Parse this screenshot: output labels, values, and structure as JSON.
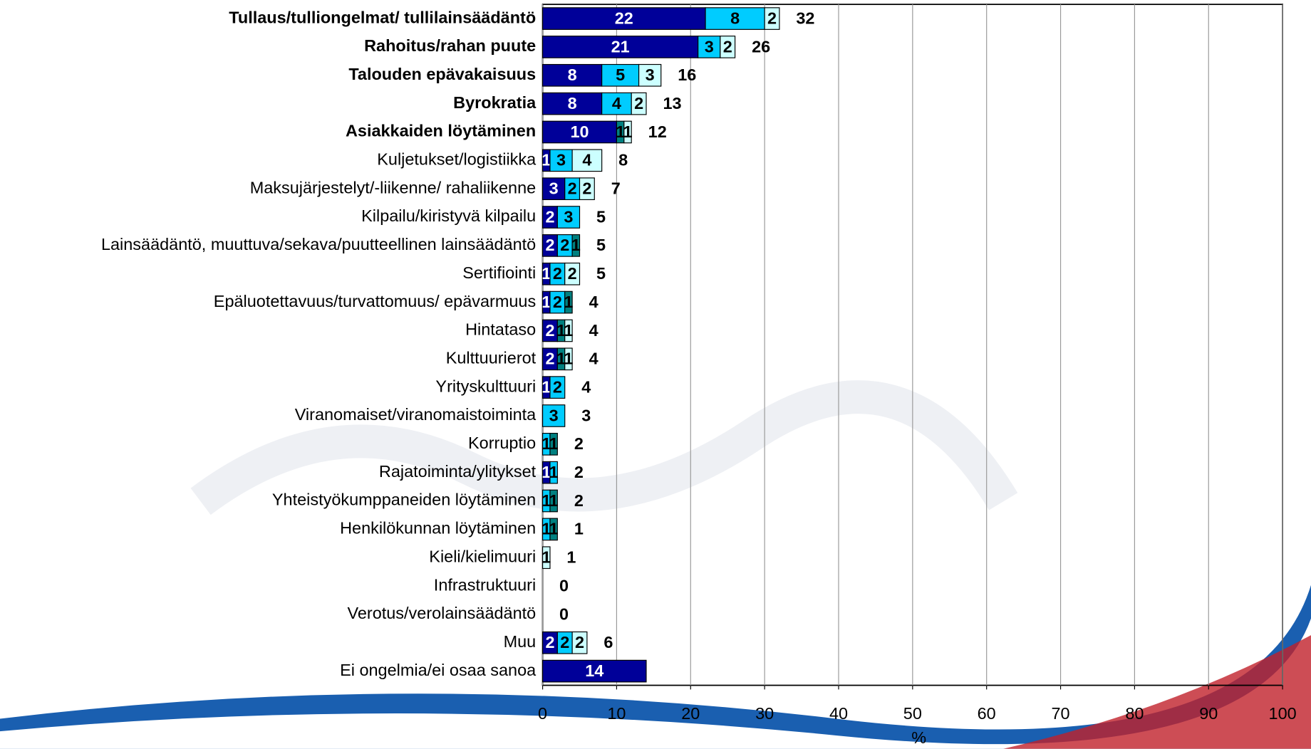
{
  "chart_data": {
    "type": "stacked-bar-horizontal",
    "categories": [
      "Tullaus/tulliongelmat/ tullilainsäädäntö",
      "Rahoitus/rahan puute",
      "Talouden epävakaisuus",
      "Byrokratia",
      "Asiakkaiden löytäminen",
      "Kuljetukset/logistiikka",
      "Maksujärjestelyt/-liikenne/ rahaliikenne",
      "Kilpailu/kiristyvä kilpailu",
      "Lainsäädäntö, muuttuva/sekava/puutteellinen lainsäädäntö",
      "Sertifiointi",
      "Epäluotettavuus/turvattomuus/ epävarmuus",
      "Hintataso",
      "Kulttuurierot",
      "Yrityskulttuuri",
      "Viranomaiset/viranomaistoiminta",
      "Korruptio",
      "Rajatoiminta/ylitykset",
      "Yhteistyökumppaneiden löytäminen",
      "Henkilökunnan löytäminen",
      "Kieli/kielimuuri",
      "Infrastruktuuri",
      "Verotus/verolainsäädäntö",
      "Muu",
      "Ei ongelmia/ei osaa sanoa"
    ],
    "bold": [
      true,
      true,
      true,
      true,
      true,
      false,
      false,
      false,
      false,
      false,
      false,
      false,
      false,
      false,
      false,
      false,
      false,
      false,
      false,
      false,
      false,
      false,
      false,
      false
    ],
    "series": [
      {
        "color": "#000099",
        "values": [
          22,
          21,
          8,
          8,
          10,
          1,
          3,
          2,
          2,
          1,
          1,
          2,
          2,
          1,
          null,
          null,
          1,
          null,
          null,
          null,
          null,
          null,
          2,
          14
        ]
      },
      {
        "color": "#00ccff",
        "values": [
          8,
          3,
          5,
          4,
          null,
          3,
          2,
          3,
          2,
          2,
          2,
          null,
          null,
          2,
          3,
          1,
          1,
          1,
          1,
          null,
          null,
          null,
          2,
          null
        ]
      },
      {
        "color": "#008080",
        "values": [
          null,
          null,
          null,
          null,
          1,
          null,
          null,
          null,
          1,
          null,
          1,
          1,
          1,
          null,
          null,
          1,
          null,
          1,
          1,
          null,
          null,
          null,
          null,
          null
        ]
      },
      {
        "color": "#ccffff",
        "values": [
          2,
          2,
          3,
          2,
          1,
          4,
          2,
          null,
          null,
          2,
          null,
          1,
          1,
          null,
          null,
          null,
          null,
          null,
          null,
          1,
          null,
          null,
          2,
          null
        ]
      }
    ],
    "totals": [
      32,
      26,
      16,
      13,
      12,
      8,
      7,
      5,
      5,
      5,
      4,
      4,
      4,
      4,
      3,
      2,
      2,
      2,
      1,
      1,
      0,
      0,
      6,
      null
    ],
    "xlabel": "%",
    "xlim": [
      0,
      100
    ],
    "xticks": [
      0,
      10,
      20,
      30,
      40,
      50,
      60,
      70,
      80,
      90,
      100
    ],
    "grid": true
  }
}
